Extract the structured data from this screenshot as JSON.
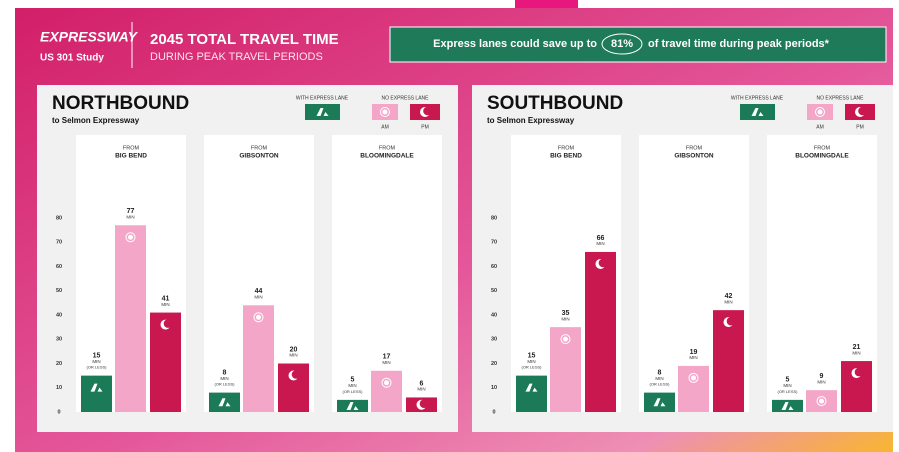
{
  "header": {
    "logo": "EXPRESSWAY",
    "study": "US 301 Study",
    "title": "2045 TOTAL TRAVEL TIME",
    "subtitle": "DURING PEAK TRAVEL PERIODS",
    "banner": {
      "before": "Express lanes could save up to",
      "highlight": "81%",
      "after": "of travel time during peak periods*"
    }
  },
  "chart_data": [
    {
      "type": "bar",
      "title": "NORTHBOUND",
      "subtitle": "to Selmon Expressway",
      "category_prefix": "FROM",
      "categories": [
        "BIG BEND",
        "GIBSONTON",
        "BLOOMINGDALE"
      ],
      "legend_group": "NO EXPRESS LANE",
      "value_unit": "MIN",
      "ylim": [
        0,
        80
      ],
      "yticks": [
        0,
        10,
        20,
        30,
        40,
        50,
        60,
        70,
        80
      ],
      "series": [
        {
          "name": "WITH EXPRESS LANE",
          "color": "#1b7a58",
          "values": [
            15,
            8,
            5
          ],
          "note": "(OR LESS)"
        },
        {
          "name": "AM",
          "color": "#f4a6c9",
          "values": [
            77,
            44,
            17
          ]
        },
        {
          "name": "PM",
          "color": "#c9174f",
          "values": [
            41,
            20,
            6
          ]
        }
      ]
    },
    {
      "type": "bar",
      "title": "SOUTHBOUND",
      "subtitle": "to Selmon Expressway",
      "category_prefix": "FROM",
      "categories": [
        "BIG BEND",
        "GIBSONTON",
        "BLOOMINGDALE"
      ],
      "legend_group": "NO EXPRESS LANE",
      "value_unit": "MIN",
      "ylim": [
        0,
        80
      ],
      "yticks": [
        0,
        10,
        20,
        30,
        40,
        50,
        60,
        70,
        80
      ],
      "series": [
        {
          "name": "WITH EXPRESS LANE",
          "color": "#1b7a58",
          "values": [
            15,
            8,
            5
          ],
          "note": "(OR LESS)"
        },
        {
          "name": "AM",
          "color": "#f4a6c9",
          "values": [
            35,
            19,
            9
          ]
        },
        {
          "name": "PM",
          "color": "#c9174f",
          "values": [
            66,
            42,
            21
          ]
        }
      ]
    }
  ]
}
